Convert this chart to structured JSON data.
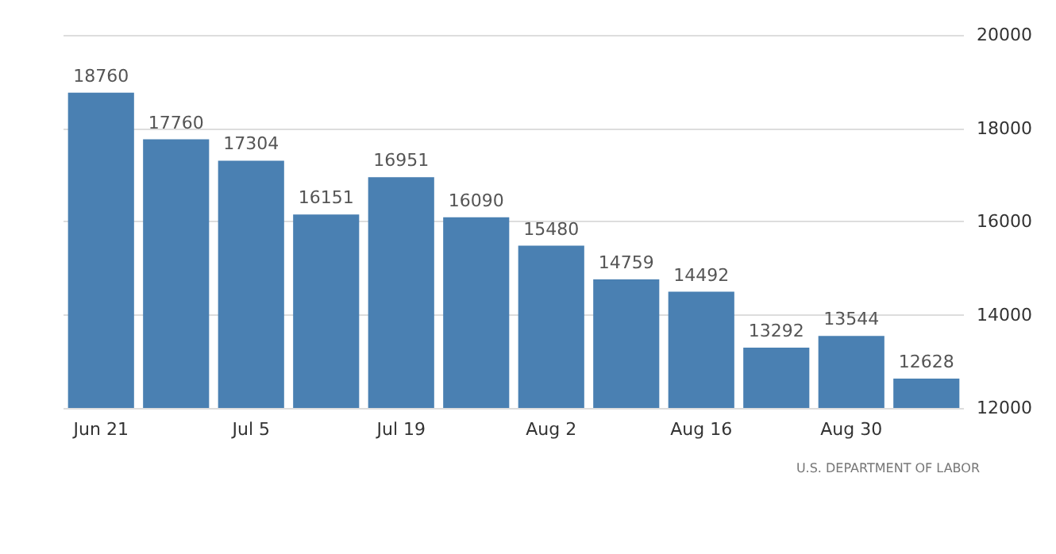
{
  "chart_data": {
    "type": "bar",
    "categories": [
      "Jun 21",
      null,
      "Jul 5",
      null,
      "Jul 19",
      null,
      "Aug 2",
      null,
      "Aug 16",
      null,
      "Aug 30",
      null
    ],
    "values": [
      18760,
      17760,
      17304,
      16151,
      16951,
      16090,
      15480,
      14759,
      14492,
      13292,
      13544,
      12628
    ],
    "color": "#4a80b2",
    "ylim": [
      12000,
      20000
    ],
    "yticks": [
      12000,
      14000,
      16000,
      18000,
      20000
    ],
    "grid": "y",
    "data_labels": true,
    "annotations": [
      "U.S. DEPARTMENT OF LABOR"
    ]
  }
}
